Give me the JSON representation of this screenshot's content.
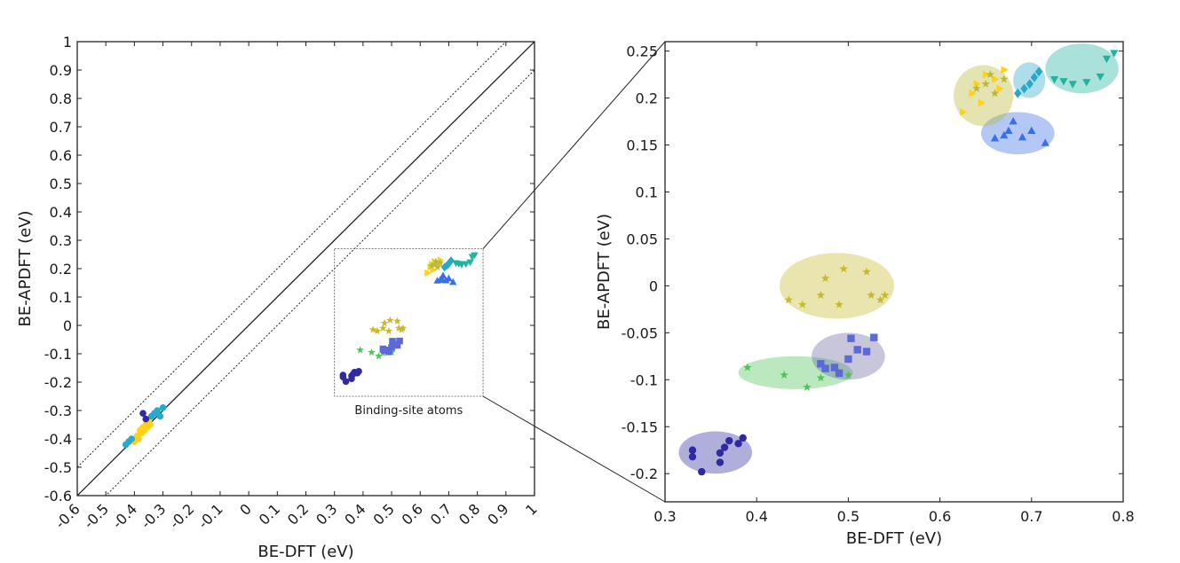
{
  "chart_data": [
    {
      "type": "scatter",
      "xlabel": "BE-DFT (eV)",
      "ylabel": "BE-APDFT (eV)",
      "xlim": [
        -0.6,
        1
      ],
      "ylim": [
        -0.6,
        1
      ],
      "xticks": [
        "-0.6",
        "-0.5",
        "-0.4",
        "-0.3",
        "-0.2",
        "-0.1",
        "0",
        "0.1",
        "0.2",
        "0.3",
        "0.4",
        "0.5",
        "0.6",
        "0.7",
        "0.8",
        "0.9",
        "1"
      ],
      "yticks": [
        "-0.6",
        "-0.5",
        "-0.4",
        "-0.3",
        "-0.2",
        "-0.1",
        "0",
        "0.1",
        "0.2",
        "0.3",
        "0.4",
        "0.5",
        "0.6",
        "0.7",
        "0.8",
        "0.9",
        "1"
      ],
      "reference_lines": [
        {
          "style": "solid",
          "offset": 0
        },
        {
          "style": "dotted",
          "offset": 0.1
        },
        {
          "style": "dotted",
          "offset": -0.1
        }
      ],
      "annotation": "Binding-site atoms",
      "annotation_box": {
        "x": [
          0.3,
          0.82
        ],
        "y": [
          -0.25,
          0.27
        ]
      },
      "grid": false,
      "series": [
        {
          "color": "#2f2aa0",
          "marker": "circle",
          "x": [
            0.33,
            0.33,
            0.34,
            0.36,
            0.36,
            0.365,
            0.37,
            0.38,
            0.385
          ],
          "y": [
            -0.175,
            -0.182,
            -0.198,
            -0.178,
            -0.188,
            -0.172,
            -0.165,
            -0.168,
            -0.162
          ]
        },
        {
          "color": "#4ec35a",
          "marker": "star",
          "x": [
            0.39,
            0.43,
            0.455,
            0.47,
            0.49,
            0.5
          ],
          "y": [
            -0.087,
            -0.095,
            -0.108,
            -0.098,
            -0.092,
            -0.095
          ]
        },
        {
          "color": "#5b6ad6",
          "marker": "square",
          "x": [
            0.47,
            0.475,
            0.485,
            0.49,
            0.5,
            0.503,
            0.51,
            0.52,
            0.528
          ],
          "y": [
            -0.083,
            -0.088,
            -0.087,
            -0.093,
            -0.078,
            -0.056,
            -0.068,
            -0.07,
            -0.055
          ]
        },
        {
          "color": "#c9b82a",
          "marker": "star",
          "x": [
            0.435,
            0.45,
            0.47,
            0.475,
            0.49,
            0.495,
            0.52,
            0.525,
            0.535,
            0.54
          ],
          "y": [
            -0.015,
            -0.02,
            -0.01,
            0.008,
            -0.02,
            0.018,
            0.015,
            -0.01,
            -0.015,
            -0.01
          ]
        },
        {
          "color": "#3a6fe8",
          "marker": "triangle-up",
          "x": [
            0.66,
            0.67,
            0.675,
            0.68,
            0.69,
            0.7,
            0.715
          ],
          "y": [
            0.157,
            0.16,
            0.165,
            0.175,
            0.158,
            0.165,
            0.152
          ]
        },
        {
          "color": "#ffd21a",
          "marker": "triangle-right",
          "x": [
            0.625,
            0.635,
            0.64,
            0.645,
            0.65,
            0.66,
            0.665,
            0.67
          ],
          "y": [
            0.185,
            0.205,
            0.215,
            0.195,
            0.225,
            0.22,
            0.21,
            0.23
          ]
        },
        {
          "color": "#b9b936",
          "marker": "star",
          "x": [
            0.64,
            0.65,
            0.655,
            0.66,
            0.67
          ],
          "y": [
            0.21,
            0.215,
            0.225,
            0.205,
            0.22
          ]
        },
        {
          "color": "#29a9c9",
          "marker": "diamond",
          "x": [
            0.685,
            0.692,
            0.698,
            0.703,
            0.708
          ],
          "y": [
            0.205,
            0.21,
            0.215,
            0.222,
            0.228
          ]
        },
        {
          "color": "#20b3a0",
          "marker": "triangle-down",
          "x": [
            0.725,
            0.735,
            0.745,
            0.76,
            0.775,
            0.782,
            0.79
          ],
          "y": [
            0.22,
            0.218,
            0.215,
            0.217,
            0.223,
            0.242,
            0.248
          ]
        },
        {
          "color": "#ffd21a",
          "marker": "circle",
          "x": [
            -0.4,
            -0.39,
            -0.385,
            -0.38,
            -0.375,
            -0.37,
            -0.365,
            -0.36,
            -0.355,
            -0.35,
            -0.345
          ],
          "y": [
            -0.41,
            -0.39,
            -0.4,
            -0.37,
            -0.38,
            -0.36,
            -0.37,
            -0.35,
            -0.36,
            -0.34,
            -0.35
          ]
        },
        {
          "color": "#29a9c9",
          "marker": "circle",
          "x": [
            -0.43,
            -0.42,
            -0.41,
            -0.34,
            -0.33,
            -0.32,
            -0.31,
            -0.3
          ],
          "y": [
            -0.42,
            -0.41,
            -0.4,
            -0.32,
            -0.31,
            -0.3,
            -0.32,
            -0.29
          ]
        },
        {
          "color": "#2f2aa0",
          "marker": "circle",
          "x": [
            -0.37,
            -0.36
          ],
          "y": [
            -0.31,
            -0.33
          ]
        }
      ]
    },
    {
      "type": "scatter",
      "xlabel": "BE-DFT (eV)",
      "ylabel": "BE-APDFT (eV)",
      "xlim": [
        0.3,
        0.8
      ],
      "ylim": [
        -0.23,
        0.26
      ],
      "xticks": [
        "0.3",
        "0.4",
        "0.5",
        "0.6",
        "0.7",
        "0.8"
      ],
      "yticks": [
        "0.25",
        "0.2",
        "0.15",
        "0.1",
        "0.05",
        "0",
        "-0.05",
        "-0.1",
        "-0.15",
        "-0.2"
      ],
      "grid": false,
      "clusters": [
        {
          "color": "#2f2aa0",
          "x": [
            0.315,
            0.395
          ],
          "y": [
            -0.2,
            -0.155
          ]
        },
        {
          "color": "#4ec35a",
          "x": [
            0.38,
            0.505
          ],
          "y": [
            -0.11,
            -0.075
          ]
        },
        {
          "color": "#6b6aa0",
          "x": [
            0.46,
            0.54
          ],
          "y": [
            -0.1,
            -0.05
          ]
        },
        {
          "color": "#c9b82a",
          "x": [
            0.425,
            0.55
          ],
          "y": [
            -0.035,
            0.035
          ]
        },
        {
          "color": "#3a6fe8",
          "x": [
            0.645,
            0.725
          ],
          "y": [
            0.14,
            0.185
          ]
        },
        {
          "color": "#b9b936",
          "x": [
            0.615,
            0.68
          ],
          "y": [
            0.17,
            0.235
          ]
        },
        {
          "color": "#29a9c9",
          "x": [
            0.68,
            0.715
          ],
          "y": [
            0.2,
            0.238
          ]
        },
        {
          "color": "#20b3a0",
          "x": [
            0.715,
            0.795
          ],
          "y": [
            0.205,
            0.258
          ]
        }
      ]
    }
  ]
}
